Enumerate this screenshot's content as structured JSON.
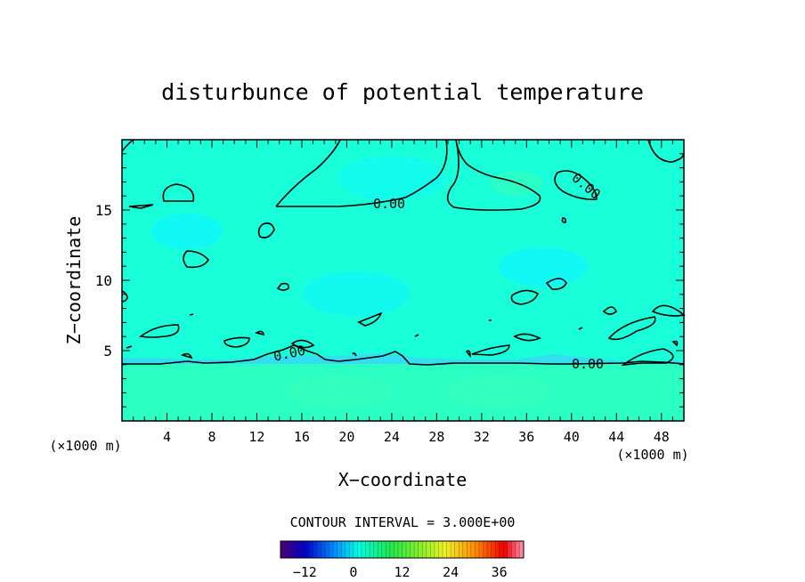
{
  "chart_data": {
    "type": "heatmap",
    "title": "disturbunce of potential temperature",
    "xlabel": "X−coordinate",
    "ylabel": "Z−coordinate",
    "x_unit_left": "(×1000 m)",
    "x_unit_right": "(×1000 m)",
    "xlim": [
      0,
      50
    ],
    "ylim": [
      0,
      20
    ],
    "x_ticks": [
      "4",
      "8",
      "12",
      "16",
      "20",
      "24",
      "28",
      "32",
      "36",
      "40",
      "44",
      "48"
    ],
    "y_ticks": [
      "5",
      "10",
      "15"
    ],
    "contour_interval_text": "CONTOUR INTERVAL = 3.000E+00",
    "contour_labels": [
      {
        "text": "0.00",
        "x": 23.8,
        "z": 15.5
      },
      {
        "text": "0.00",
        "x": 40.5,
        "z": 16.6
      },
      {
        "text": "0.00",
        "x": 15.0,
        "z": 4.8
      },
      {
        "text": "0.00",
        "x": 41.0,
        "z": 4.1
      }
    ],
    "fill_levels": {
      "upper_region_value": -1,
      "layer_near_5_value": -4,
      "lower_region_value": 1
    },
    "colorbar": {
      "range": [
        -18,
        42
      ],
      "tick_labels": [
        "−12",
        "0",
        "12",
        "24",
        "36"
      ],
      "tick_values": [
        -12,
        0,
        12,
        24,
        36
      ]
    },
    "colors": {
      "upper_fill": "#19ffd9",
      "band_fill": "#44c8ff",
      "lower_fill": "#2bffc4",
      "contour": "#000000"
    }
  }
}
